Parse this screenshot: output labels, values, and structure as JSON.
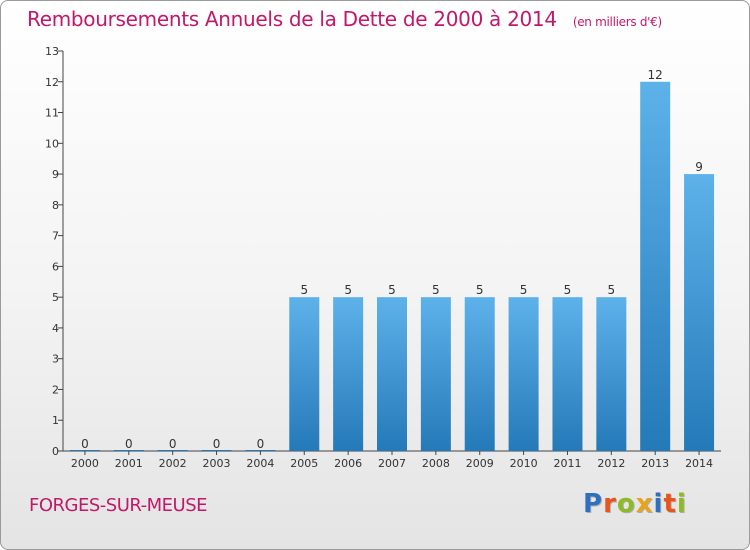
{
  "title": "Remboursements Annuels de la Dette de 2000 à 2014",
  "subtitle": "(en milliers d'€)",
  "place": "FORGES-SUR-MEUSE",
  "logo": {
    "letters": [
      "P",
      "r",
      "o",
      "x",
      "i",
      "t",
      "i"
    ],
    "colors": [
      "#2f6fbf",
      "#e8541c",
      "#8dbb25",
      "#e8a31c",
      "#2f6fbf",
      "#e8541c",
      "#8dbb25"
    ]
  },
  "colors": {
    "title": "#c2186a",
    "bar_top": "#5eb2ea",
    "bar_bottom": "#2479b8",
    "axis": "#444444"
  },
  "chart_data": {
    "type": "bar",
    "categories": [
      "2000",
      "2001",
      "2002",
      "2003",
      "2004",
      "2005",
      "2006",
      "2007",
      "2008",
      "2009",
      "2010",
      "2011",
      "2012",
      "2013",
      "2014"
    ],
    "values": [
      0,
      0,
      0,
      0,
      0,
      5,
      5,
      5,
      5,
      5,
      5,
      5,
      5,
      12,
      9
    ],
    "data_labels": [
      "0",
      "0",
      "0",
      "0",
      "0",
      "5",
      "5",
      "5",
      "5",
      "5",
      "5",
      "5",
      "5",
      "12",
      "9"
    ],
    "y_ticks": [
      "0",
      "1",
      "2",
      "3",
      "4",
      "5",
      "6",
      "7",
      "8",
      "9",
      "10",
      "11",
      "12",
      "13"
    ],
    "ylim": [
      0,
      13
    ],
    "title": "Remboursements Annuels de la Dette de 2000 à 2014",
    "subtitle": "(en milliers d'€)",
    "xlabel": "",
    "ylabel": "",
    "grid": false,
    "legend": "none"
  }
}
